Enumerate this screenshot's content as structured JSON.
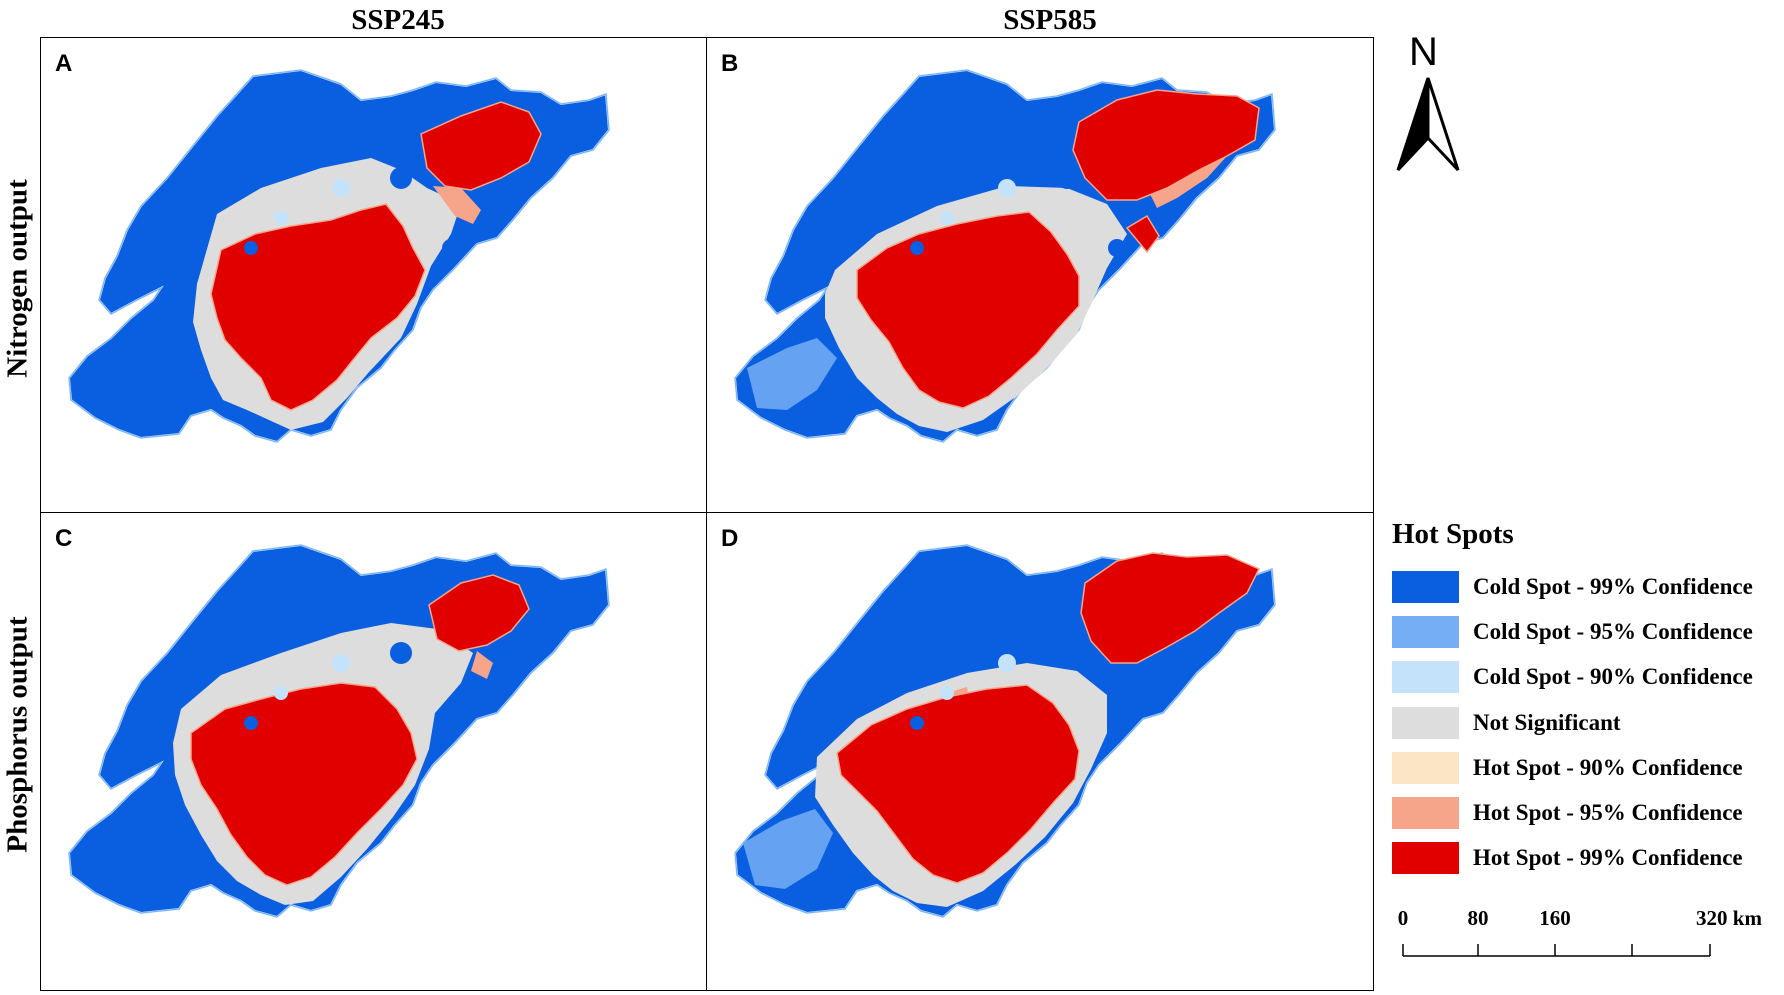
{
  "columns": [
    "SSP245",
    "SSP585"
  ],
  "rows": [
    "Nitrogen output",
    "Phosphorus output"
  ],
  "panels": [
    {
      "letter": "A",
      "scenario": "SSP245",
      "variable": "Nitrogen output"
    },
    {
      "letter": "B",
      "scenario": "SSP585",
      "variable": "Nitrogen output"
    },
    {
      "letter": "C",
      "scenario": "SSP245",
      "variable": "Phosphorus output"
    },
    {
      "letter": "D",
      "scenario": "SSP585",
      "variable": "Phosphorus output"
    }
  ],
  "north_arrow": {
    "label": "N",
    "icon": "north-arrow-icon"
  },
  "legend": {
    "title": "Hot Spots",
    "items": [
      {
        "label": "Cold Spot - 99% Confidence",
        "color": "#0a5fe0"
      },
      {
        "label": "Cold Spot - 95% Confidence",
        "color": "#76aef5"
      },
      {
        "label": "Cold Spot - 90% Confidence",
        "color": "#c4e3fb"
      },
      {
        "label": "Not Significant",
        "color": "#dddddd"
      },
      {
        "label": "Hot Spot - 90% Confidence",
        "color": "#fce5c4"
      },
      {
        "label": "Hot Spot - 95% Confidence",
        "color": "#f7a58a"
      },
      {
        "label": "Hot Spot - 99% Confidence",
        "color": "#e00000"
      }
    ]
  },
  "scale_bar": {
    "ticks": [
      "0",
      "80",
      "160",
      "",
      "320 km"
    ],
    "unit": "km"
  }
}
